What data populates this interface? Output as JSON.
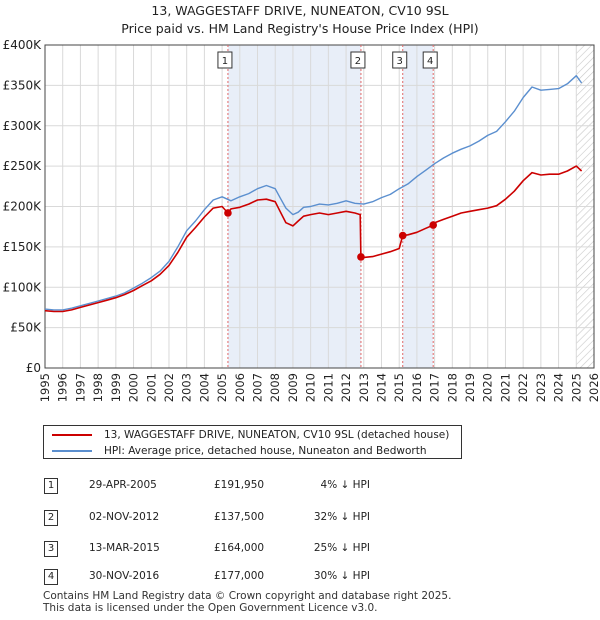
{
  "title_line1": "13, WAGGESTAFF DRIVE, NUNEATON, CV10 9SL",
  "title_line2": "Price paid vs. HM Land Registry's House Price Index (HPI)",
  "colors": {
    "property": "#cc0000",
    "hpi": "#5b8fcf",
    "shade": "#e8eef8",
    "marker_line": "#e06666",
    "grid": "#d9d9d9"
  },
  "legend": {
    "property_label": "13, WAGGESTAFF DRIVE, NUNEATON, CV10 9SL (detached house)",
    "hpi_label": "HPI: Average price, detached house, Nuneaton and Bedworth"
  },
  "chart_data": {
    "type": "line",
    "title": "13, WAGGESTAFF DRIVE, NUNEATON, CV10 9SL",
    "subtitle": "Price paid vs. HM Land Registry's House Price Index (HPI)",
    "xlim": [
      1995,
      2026
    ],
    "ylim": [
      0,
      400000
    ],
    "x_ticks": [
      1995,
      1996,
      1997,
      1998,
      1999,
      2000,
      2001,
      2002,
      2003,
      2004,
      2005,
      2006,
      2007,
      2008,
      2009,
      2010,
      2011,
      2012,
      2013,
      2014,
      2015,
      2016,
      2017,
      2018,
      2019,
      2020,
      2021,
      2022,
      2023,
      2024,
      2025,
      2026
    ],
    "y_ticks": [
      {
        "value": 0,
        "label": "£0"
      },
      {
        "value": 50000,
        "label": "£50K"
      },
      {
        "value": 100000,
        "label": "£100K"
      },
      {
        "value": 150000,
        "label": "£150K"
      },
      {
        "value": 200000,
        "label": "£200K"
      },
      {
        "value": 250000,
        "label": "£250K"
      },
      {
        "value": 300000,
        "label": "£300K"
      },
      {
        "value": 350000,
        "label": "£350K"
      },
      {
        "value": 400000,
        "label": "£400K"
      }
    ],
    "shaded_periods": [
      [
        2005.33,
        2012.84
      ],
      [
        2015.2,
        2016.92
      ]
    ],
    "future_hatch_from": 2025.0,
    "series": [
      {
        "name": "HPI: Average price, detached house, Nuneaton and Bedworth",
        "x": [
          1995.0,
          1995.5,
          1996.0,
          1996.5,
          1997.0,
          1997.5,
          1998.0,
          1998.5,
          1999.0,
          1999.5,
          2000.0,
          2000.5,
          2001.0,
          2001.5,
          2002.0,
          2002.5,
          2003.0,
          2003.5,
          2004.0,
          2004.5,
          2005.0,
          2005.5,
          2006.0,
          2006.5,
          2007.0,
          2007.5,
          2008.0,
          2008.3,
          2008.6,
          2009.0,
          2009.3,
          2009.6,
          2010.0,
          2010.5,
          2011.0,
          2011.5,
          2012.0,
          2012.5,
          2013.0,
          2013.5,
          2014.0,
          2014.5,
          2015.0,
          2015.5,
          2016.0,
          2016.5,
          2017.0,
          2017.5,
          2018.0,
          2018.5,
          2019.0,
          2019.5,
          2020.0,
          2020.5,
          2021.0,
          2021.5,
          2022.0,
          2022.5,
          2023.0,
          2023.5,
          2024.0,
          2024.5,
          2025.0,
          2025.3
        ],
        "y": [
          73000,
          72000,
          72000,
          74000,
          77000,
          80000,
          83000,
          86000,
          89000,
          93000,
          99000,
          105000,
          112000,
          120000,
          132000,
          150000,
          170000,
          182000,
          196000,
          208000,
          212000,
          207000,
          212000,
          216000,
          222000,
          226000,
          222000,
          210000,
          198000,
          190000,
          193000,
          199000,
          200000,
          203000,
          202000,
          204000,
          207000,
          204000,
          203000,
          206000,
          211000,
          215000,
          222000,
          228000,
          237000,
          245000,
          253000,
          260000,
          266000,
          271000,
          275000,
          281000,
          288000,
          293000,
          305000,
          318000,
          335000,
          348000,
          344000,
          345000,
          346000,
          352000,
          362000,
          353000
        ]
      },
      {
        "name": "13, WAGGESTAFF DRIVE, NUNEATON, CV10 9SL (detached house)",
        "x": [
          1995.0,
          1995.5,
          1996.0,
          1996.5,
          1997.0,
          1997.5,
          1998.0,
          1998.5,
          1999.0,
          1999.5,
          2000.0,
          2000.5,
          2001.0,
          2001.5,
          2002.0,
          2002.5,
          2003.0,
          2003.5,
          2004.0,
          2004.5,
          2005.0,
          2005.33,
          2005.5,
          2006.0,
          2006.5,
          2007.0,
          2007.5,
          2008.0,
          2008.3,
          2008.6,
          2009.0,
          2009.3,
          2009.6,
          2010.0,
          2010.5,
          2011.0,
          2011.5,
          2012.0,
          2012.5,
          2012.8,
          2012.84,
          2013.0,
          2013.5,
          2014.0,
          2014.5,
          2015.0,
          2015.2,
          2015.5,
          2016.0,
          2016.5,
          2016.92,
          2017.0,
          2017.5,
          2018.0,
          2018.5,
          2019.0,
          2019.5,
          2020.0,
          2020.5,
          2021.0,
          2021.5,
          2022.0,
          2022.5,
          2023.0,
          2023.5,
          2024.0,
          2024.5,
          2025.0,
          2025.3
        ],
        "y": [
          71000,
          70000,
          70000,
          72000,
          75000,
          78000,
          81000,
          84000,
          87000,
          91000,
          96000,
          102000,
          108000,
          116000,
          127000,
          143000,
          162000,
          174000,
          187000,
          198000,
          200000,
          191950,
          197000,
          199000,
          203000,
          208000,
          209000,
          206000,
          193000,
          180000,
          176000,
          182000,
          188000,
          190000,
          192000,
          190000,
          192000,
          194000,
          192000,
          190000,
          137500,
          137000,
          138000,
          141000,
          144000,
          148000,
          164000,
          165000,
          168000,
          173000,
          177000,
          180000,
          184000,
          188000,
          192000,
          194000,
          196000,
          198000,
          201000,
          209000,
          219000,
          232000,
          242000,
          239000,
          240000,
          240000,
          244000,
          250000,
          244000
        ]
      }
    ],
    "sales": [
      {
        "label": "1",
        "x": 2005.33,
        "y": 191950
      },
      {
        "label": "2",
        "x": 2012.84,
        "y": 137500
      },
      {
        "label": "3",
        "x": 2015.2,
        "y": 164000
      },
      {
        "label": "4",
        "x": 2016.92,
        "y": 177000
      }
    ]
  },
  "transactions": [
    {
      "num": "1",
      "date": "29-APR-2005",
      "price": "£191,950",
      "hpi": "4% ↓ HPI"
    },
    {
      "num": "2",
      "date": "02-NOV-2012",
      "price": "£137,500",
      "hpi": "32% ↓ HPI"
    },
    {
      "num": "3",
      "date": "13-MAR-2015",
      "price": "£164,000",
      "hpi": "25% ↓ HPI"
    },
    {
      "num": "4",
      "date": "30-NOV-2016",
      "price": "£177,000",
      "hpi": "30% ↓ HPI"
    }
  ],
  "footer": {
    "line1": "Contains HM Land Registry data © Crown copyright and database right 2025.",
    "line2": "This data is licensed under the Open Government Licence v3.0."
  }
}
